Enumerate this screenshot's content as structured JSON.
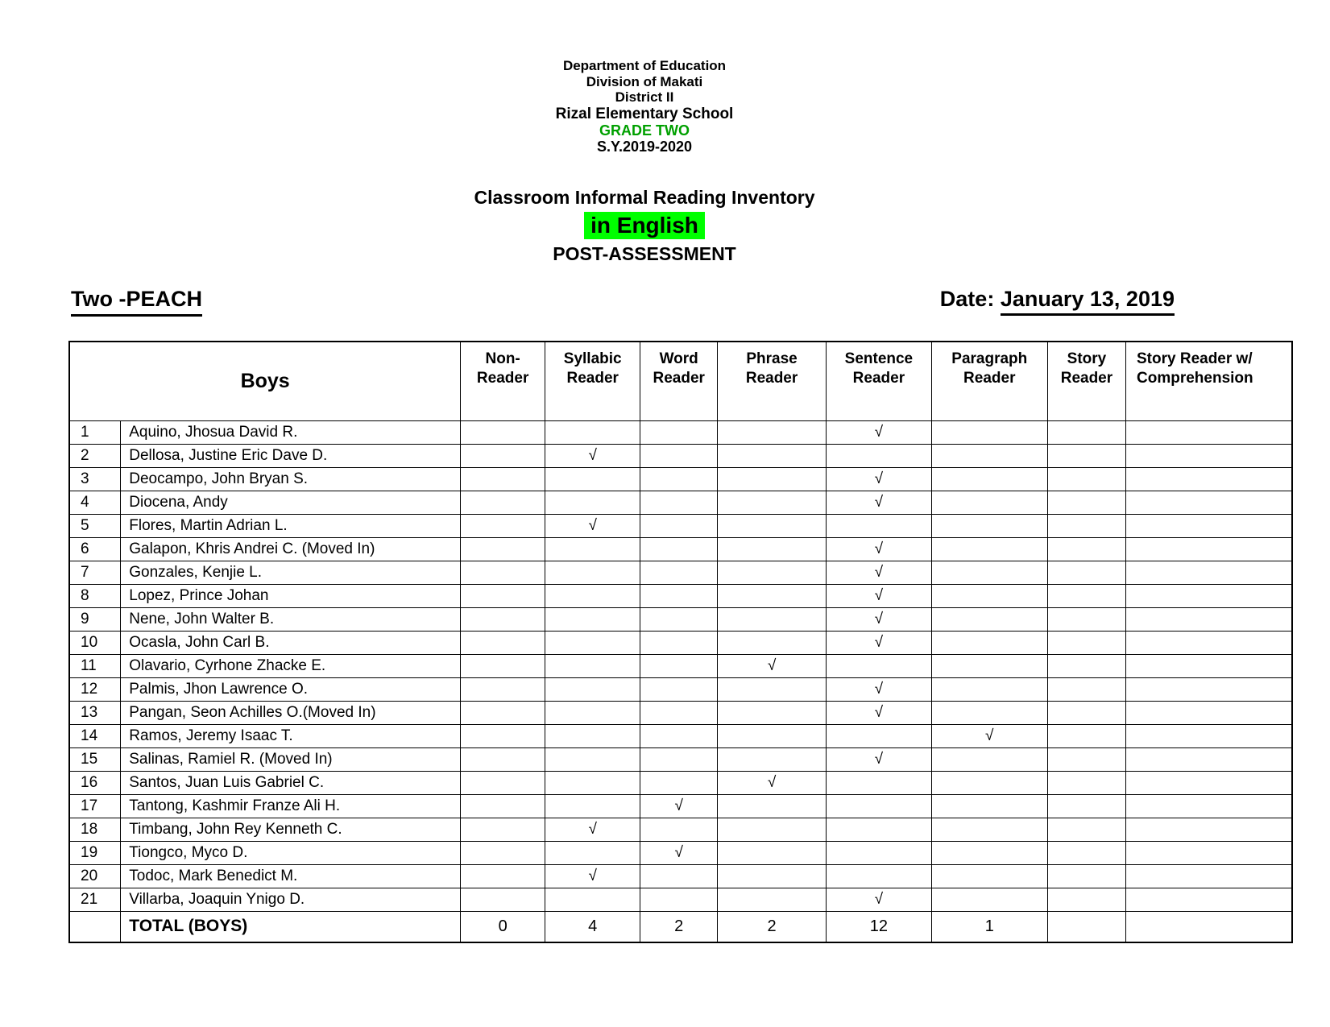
{
  "letterhead": {
    "department": "Department of Education",
    "division": "Division of Makati",
    "district": "District II",
    "school": "Rizal Elementary School",
    "grade": "GRADE TWO",
    "school_year": "S.Y.2019-2020"
  },
  "title": {
    "main": "Classroom Informal Reading Inventory",
    "highlighted": "in English",
    "assessment": "POST-ASSESSMENT"
  },
  "meta": {
    "class_name": "Two -PEACH",
    "date_label": "Date:",
    "date_value": "January 13, 2019"
  },
  "colors": {
    "grade_text_green": "#00A000",
    "highlight_green": "#00FF00",
    "text_black": "#000000"
  },
  "check_glyph": "√",
  "table": {
    "group_header": "Boys",
    "columns": [
      "Non-\nReader",
      "Syllabic\nReader",
      "Word\nReader",
      "Phrase\nReader",
      "Sentence\nReader",
      "Paragraph\nReader",
      "Story\nReader",
      "Story Reader w/\nComprehension"
    ],
    "rows": [
      {
        "num": "1",
        "name": "Aquino, Jhosua David R.",
        "marks": [
          "",
          "",
          "",
          "",
          "√",
          "",
          "",
          ""
        ]
      },
      {
        "num": "2",
        "name": "Dellosa, Justine Eric Dave D.",
        "marks": [
          "",
          "√",
          "",
          "",
          "",
          "",
          "",
          ""
        ]
      },
      {
        "num": "3",
        "name": "Deocampo, John Bryan S.",
        "marks": [
          "",
          "",
          "",
          "",
          "√",
          "",
          "",
          ""
        ]
      },
      {
        "num": "4",
        "name": "Diocena, Andy",
        "marks": [
          "",
          "",
          "",
          "",
          "√",
          "",
          "",
          ""
        ]
      },
      {
        "num": "5",
        "name": "Flores, Martin Adrian L.",
        "marks": [
          "",
          "√",
          "",
          "",
          "",
          "",
          "",
          ""
        ]
      },
      {
        "num": "6",
        "name": "Galapon, Khris Andrei C. (Moved In)",
        "marks": [
          "",
          "",
          "",
          "",
          "√",
          "",
          "",
          ""
        ]
      },
      {
        "num": "7",
        "name": "Gonzales, Kenjie L.",
        "marks": [
          "",
          "",
          "",
          "",
          "√",
          "",
          "",
          ""
        ]
      },
      {
        "num": "8",
        "name": "Lopez, Prince Johan",
        "marks": [
          "",
          "",
          "",
          "",
          "√",
          "",
          "",
          ""
        ]
      },
      {
        "num": "9",
        "name": "Nene, John Walter B.",
        "marks": [
          "",
          "",
          "",
          "",
          "√",
          "",
          "",
          ""
        ]
      },
      {
        "num": "10",
        "name": "Ocasla, John Carl B.",
        "marks": [
          "",
          "",
          "",
          "",
          "√",
          "",
          "",
          ""
        ]
      },
      {
        "num": "11",
        "name": "Olavario, Cyrhone Zhacke E.",
        "marks": [
          "",
          "",
          "",
          "√",
          "",
          "",
          "",
          ""
        ]
      },
      {
        "num": "12",
        "name": "Palmis, Jhon Lawrence O.",
        "marks": [
          "",
          "",
          "",
          "",
          "√",
          "",
          "",
          ""
        ]
      },
      {
        "num": "13",
        "name": "Pangan, Seon Achilles O.(Moved In)",
        "marks": [
          "",
          "",
          "",
          "",
          "√",
          "",
          "",
          ""
        ]
      },
      {
        "num": "14",
        "name": "Ramos, Jeremy Isaac T.",
        "marks": [
          "",
          "",
          "",
          "",
          "",
          "√",
          "",
          ""
        ]
      },
      {
        "num": "15",
        "name": "Salinas, Ramiel R. (Moved In)",
        "marks": [
          "",
          "",
          "",
          "",
          "√",
          "",
          "",
          ""
        ]
      },
      {
        "num": "16",
        "name": "Santos, Juan Luis Gabriel C.",
        "marks": [
          "",
          "",
          "",
          "√",
          "",
          "",
          "",
          ""
        ]
      },
      {
        "num": "17",
        "name": "Tantong, Kashmir Franze Ali H.",
        "marks": [
          "",
          "",
          "√",
          "",
          "",
          "",
          "",
          ""
        ]
      },
      {
        "num": "18",
        "name": "Timbang, John Rey Kenneth C.",
        "marks": [
          "",
          "√",
          "",
          "",
          "",
          "",
          "",
          ""
        ]
      },
      {
        "num": "19",
        "name": "Tiongco, Myco D.",
        "marks": [
          "",
          "",
          "√",
          "",
          "",
          "",
          "",
          ""
        ]
      },
      {
        "num": "20",
        "name": "Todoc, Mark Benedict M.",
        "marks": [
          "",
          "√",
          "",
          "",
          "",
          "",
          "",
          ""
        ]
      },
      {
        "num": "21",
        "name": "Villarba, Joaquin Ynigo D.",
        "marks": [
          "",
          "",
          "",
          "",
          "√",
          "",
          "",
          ""
        ]
      }
    ],
    "total": {
      "label": "TOTAL (BOYS)",
      "values": [
        "0",
        "4",
        "2",
        "2",
        "12",
        "1",
        "",
        ""
      ]
    }
  }
}
